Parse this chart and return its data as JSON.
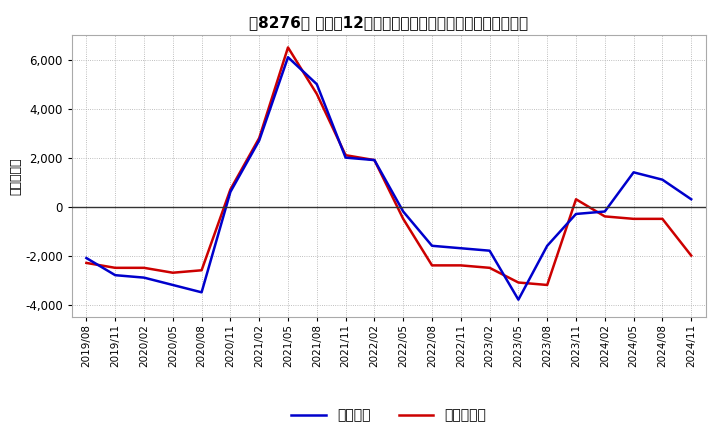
{
  "title": "［8276］ 利益だ12か月移動合計の対前年同期増減額の推移",
  "ylabel": "（百万円）",
  "ylim": [
    -4500,
    7000
  ],
  "yticks": [
    -4000,
    -2000,
    0,
    2000,
    4000,
    6000
  ],
  "background_color": "#ffffff",
  "grid_color": "#aaaaaa",
  "legend_labels": [
    "経常利益",
    "当期純利益"
  ],
  "line_colors": [
    "#0000cc",
    "#cc0000"
  ],
  "dates": [
    "2019/08",
    "2019/11",
    "2020/02",
    "2020/05",
    "2020/08",
    "2020/11",
    "2021/02",
    "2021/05",
    "2021/08",
    "2021/11",
    "2022/02",
    "2022/05",
    "2022/08",
    "2022/11",
    "2023/02",
    "2023/05",
    "2023/08",
    "2023/11",
    "2024/02",
    "2024/05",
    "2024/08",
    "2024/11"
  ],
  "ordinary_profit": [
    -2100,
    -2800,
    -2900,
    -3200,
    -3500,
    600,
    2700,
    6100,
    5000,
    2000,
    1900,
    -200,
    -1600,
    -1700,
    -1800,
    -3800,
    -1600,
    -300,
    -200,
    1400,
    1100,
    300
  ],
  "net_profit": [
    -2300,
    -2500,
    -2500,
    -2700,
    -2600,
    700,
    2800,
    6500,
    4600,
    2100,
    1900,
    -500,
    -2400,
    -2400,
    -2500,
    -3100,
    -3200,
    300,
    -400,
    -500,
    -500,
    -2000
  ]
}
